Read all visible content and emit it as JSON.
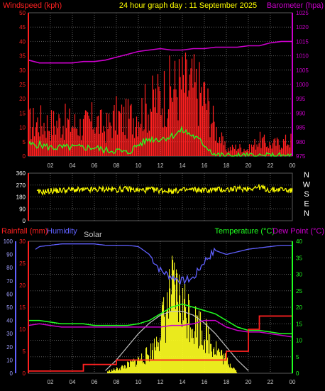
{
  "title": "24 hour graph day : 11 September 2025",
  "colors": {
    "background": "#000000",
    "grid": "#5a5a5a",
    "tick": "#c8c8c8",
    "wind": "#ff2020",
    "gust": "#ff0000",
    "avg_wind": "#20ff20",
    "barometer": "#cc00cc",
    "direction": "#ffff00",
    "rain_axis": "#ff2020",
    "humidity": "#6060ff",
    "temp": "#20ff20",
    "dew": "#cc00cc",
    "solar": "#ffff20",
    "solar_curve": "#c0c0c0"
  },
  "chart_data": [
    {
      "type": "area",
      "name": "wind-barometer",
      "x_tick_labels": [
        "02",
        "04",
        "06",
        "08",
        "10",
        "12",
        "14",
        "16",
        "18",
        "20",
        "22",
        "00"
      ],
      "x_tick_hours": [
        2,
        4,
        6,
        8,
        10,
        12,
        14,
        16,
        18,
        20,
        22,
        24
      ],
      "left_axis": {
        "label": "Windspeed (kph)",
        "range": [
          0,
          50
        ],
        "ticks": [
          0,
          5,
          10,
          15,
          20,
          25,
          30,
          35,
          40,
          45,
          50
        ]
      },
      "right_axis": {
        "label": "Barometer (hpa)",
        "range": [
          975,
          1025
        ],
        "ticks": [
          975,
          980,
          985,
          990,
          995,
          1000,
          1005,
          1010,
          1015,
          1020,
          1025
        ]
      },
      "series": [
        {
          "name": "Barometer",
          "x": [
            0,
            1,
            2,
            3,
            4,
            5,
            6,
            7,
            8,
            9,
            10,
            11,
            12,
            13,
            14,
            15,
            16,
            17,
            18,
            19,
            20,
            21,
            22,
            23,
            24
          ],
          "y": [
            1008.5,
            1007.5,
            1007.5,
            1007.5,
            1007.5,
            1008,
            1008,
            1008.5,
            1009.5,
            1010.5,
            1011.5,
            1012,
            1012.5,
            1012,
            1012,
            1012.5,
            1012.5,
            1013,
            1013,
            1013,
            1013.5,
            1013.5,
            1014.5,
            1015,
            1015
          ]
        },
        {
          "name": "Gust",
          "x": [
            0,
            1,
            2,
            3,
            4,
            5,
            6,
            7,
            8,
            9,
            10,
            11,
            12,
            13,
            14,
            15,
            16,
            17,
            18,
            19,
            20,
            21,
            22,
            23,
            24
          ],
          "y": [
            14,
            15,
            14,
            15,
            14,
            13,
            16,
            12,
            17,
            16,
            19,
            22,
            26,
            29,
            31,
            30,
            26,
            12,
            3,
            4,
            3,
            7,
            5,
            6,
            7
          ]
        },
        {
          "name": "Average",
          "x": [
            0,
            1,
            2,
            3,
            4,
            5,
            6,
            7,
            8,
            9,
            10,
            11,
            12,
            13,
            14,
            15,
            16,
            17,
            18,
            19,
            20,
            21,
            22,
            23,
            24
          ],
          "y": [
            4,
            4,
            3,
            3,
            3,
            3,
            3,
            2,
            2,
            1,
            4,
            6,
            6,
            7,
            9,
            7,
            4,
            0.5,
            0,
            0,
            0,
            0,
            0,
            0,
            0
          ]
        }
      ]
    },
    {
      "type": "line",
      "name": "wind-direction",
      "left_axis": {
        "ticks": [
          0,
          90,
          180,
          270,
          360
        ],
        "range": [
          0,
          360
        ]
      },
      "right_labels": [
        "N",
        "W",
        "S",
        "E",
        "N"
      ],
      "series": [
        {
          "name": "Direction",
          "x": [
            0,
            1,
            2,
            3,
            4,
            5,
            6,
            7,
            8,
            9,
            10,
            11,
            12,
            13,
            14,
            15,
            16,
            17,
            18,
            19,
            20,
            21,
            22,
            23,
            24
          ],
          "y": [
            220,
            215,
            225,
            230,
            235,
            230,
            235,
            240,
            235,
            240,
            230,
            235,
            230,
            225,
            230,
            235,
            230,
            235,
            235,
            240,
            245,
            255,
            230,
            240,
            225
          ]
        }
      ]
    },
    {
      "type": "line",
      "name": "rain-humidity-temp",
      "left_axis_rain": {
        "label": "Rainfall (mm)",
        "range": [
          0,
          30
        ],
        "ticks": [
          0,
          5,
          10,
          15,
          20,
          25,
          30
        ]
      },
      "left_axis_humidity": {
        "label": "Humidity",
        "range": [
          0,
          100
        ],
        "ticks": [
          0,
          10,
          20,
          30,
          40,
          50,
          60,
          70,
          80,
          90,
          100
        ]
      },
      "solar_label": "Solar",
      "right_axis": {
        "label_temp": "Temperature (°C)",
        "label_dew": "Dew Point (°C)",
        "range": [
          0,
          40
        ],
        "ticks": [
          0,
          5,
          10,
          15,
          20,
          25,
          30,
          35,
          40
        ]
      },
      "series": [
        {
          "name": "Humidity",
          "x": [
            0,
            1,
            2,
            3,
            4,
            5,
            6,
            7,
            8,
            9,
            10,
            11,
            12,
            13,
            14,
            15,
            16,
            17,
            18,
            19,
            20,
            21,
            22,
            23,
            24
          ],
          "y": [
            90,
            96,
            97,
            98,
            98,
            98,
            98,
            97,
            97,
            97,
            96,
            90,
            78,
            73,
            70,
            72,
            85,
            93,
            90,
            92,
            94,
            95,
            96,
            97,
            97
          ]
        },
        {
          "name": "Temperature",
          "x": [
            0,
            1,
            2,
            3,
            4,
            5,
            6,
            7,
            8,
            9,
            10,
            11,
            12,
            13,
            14,
            15,
            16,
            17,
            18,
            19,
            20,
            21,
            22,
            23,
            24
          ],
          "y": [
            16,
            16,
            15.5,
            15,
            15,
            15,
            14.5,
            14.5,
            14.5,
            14.5,
            15,
            16,
            18,
            20,
            21,
            20,
            19,
            18,
            16,
            14,
            13,
            13,
            12.5,
            12,
            12
          ]
        },
        {
          "name": "Dew Point",
          "x": [
            0,
            1,
            2,
            3,
            4,
            5,
            6,
            7,
            8,
            9,
            10,
            11,
            12,
            13,
            14,
            15,
            16,
            17,
            18,
            19,
            20,
            21,
            22,
            23,
            24
          ],
          "y": [
            14.5,
            15,
            14.5,
            14,
            14,
            14,
            14,
            14,
            14,
            14,
            14,
            14,
            14,
            14.5,
            14.5,
            15,
            16,
            16,
            14,
            13,
            12.5,
            12.5,
            12,
            11.5,
            11
          ]
        },
        {
          "name": "Rainfall",
          "x": [
            0,
            1,
            2,
            3,
            4,
            5,
            6,
            7,
            8,
            9,
            10,
            11,
            12,
            13,
            14,
            15,
            16,
            17,
            18,
            19,
            20,
            21,
            22,
            23,
            24
          ],
          "y": [
            0.5,
            0.5,
            0.5,
            0.5,
            0.5,
            2,
            2,
            2,
            3,
            3,
            3,
            3,
            3,
            3,
            3,
            3,
            3,
            3,
            5,
            5,
            10,
            13,
            13,
            13,
            13
          ]
        },
        {
          "name": "Solar",
          "x": [
            7,
            8,
            9,
            10,
            10.5,
            11,
            11.5,
            12,
            12.5,
            13,
            13.5,
            14,
            14.5,
            15,
            15.5,
            16,
            16.5,
            17,
            17.5,
            18,
            18.5,
            19
          ],
          "y": [
            1,
            3,
            6,
            10,
            12,
            15,
            20,
            35,
            45,
            60,
            58,
            50,
            48,
            38,
            36,
            30,
            25,
            20,
            14,
            10,
            6,
            1
          ]
        },
        {
          "name": "Solar Max",
          "x": [
            7,
            8,
            9,
            10,
            11,
            12,
            13,
            14,
            15,
            16,
            17,
            18,
            19,
            20
          ],
          "y": [
            2,
            10,
            20,
            30,
            38,
            44,
            47,
            47,
            44,
            38,
            30,
            20,
            10,
            2
          ]
        }
      ]
    }
  ]
}
